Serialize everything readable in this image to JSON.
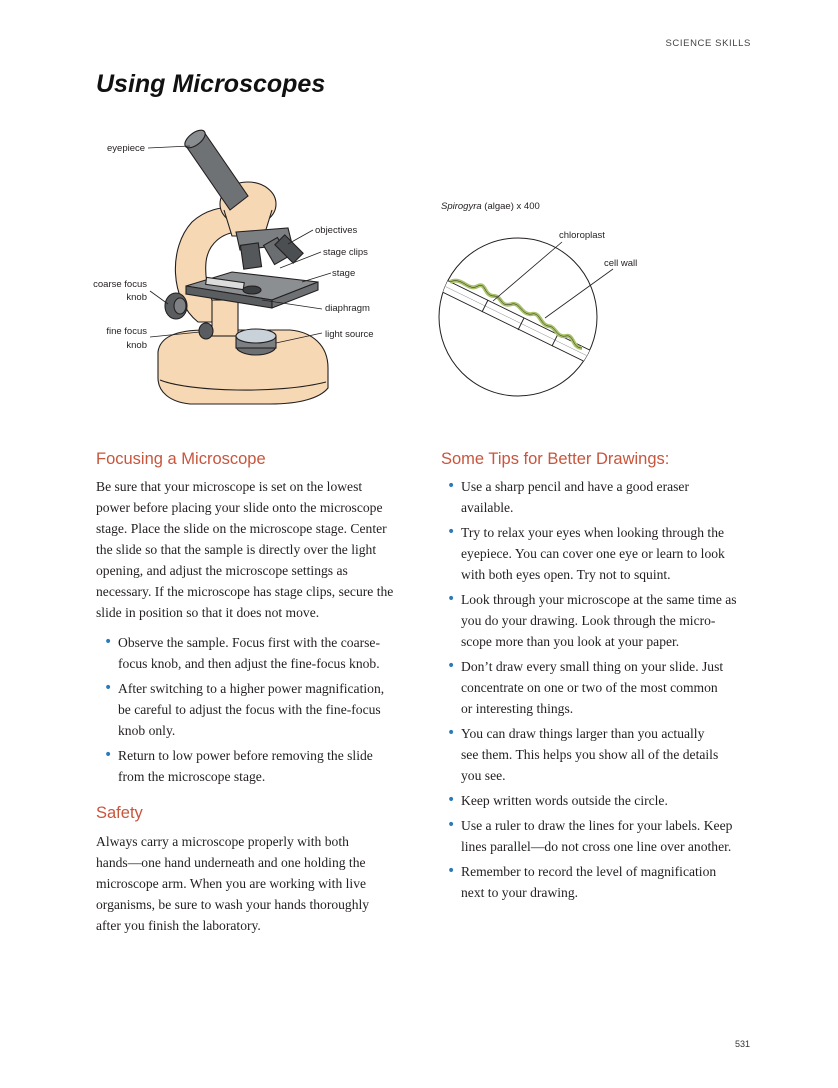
{
  "header": {
    "section_tag": "SCIENCE SKILLS"
  },
  "page_title": "Using Microscopes",
  "microscope_figure": {
    "labels": {
      "eyepiece": "eyepiece",
      "objectives": "objectives",
      "stage_clips": "stage clips",
      "stage": "stage",
      "coarse_focus_1": "coarse focus",
      "coarse_focus_2": "knob",
      "diaphragm": "diaphragm",
      "fine_focus_1": "fine focus",
      "fine_focus_2": "knob",
      "light_source": "light source"
    }
  },
  "spirogyra_figure": {
    "caption_italic": "Spirogyra",
    "caption_rest": " (algae) x 400",
    "labels": {
      "chloroplast": "chloroplast",
      "cell_wall": "cell wall"
    }
  },
  "focusing": {
    "heading": "Focusing a Microscope",
    "lines": [
      "Be sure that your microscope is set on the lowest",
      "power before placing your slide onto the microscope",
      "stage. Place the slide on the microscope stage. Center",
      "the slide so that the sample is directly over the light",
      "opening, and adjust the microscope settings as",
      "necessary. If the microscope has stage clips, secure the",
      "slide in position so that it does not move."
    ],
    "bullets": [
      [
        "Observe the sample. Focus first with the coarse-",
        "focus knob, and then adjust the fine-focus knob."
      ],
      [
        "After switching to a higher power magnification,",
        "be careful to adjust the focus with the fine-focus",
        "knob only."
      ],
      [
        "Return to low power before removing the slide",
        "from the microscope stage."
      ]
    ]
  },
  "safety": {
    "heading": "Safety",
    "lines": [
      "Always carry a microscope properly with both",
      "hands—one hand underneath and one holding the",
      "microscope arm. When you are working with live",
      "organisms, be sure to wash your hands thoroughly",
      "after you finish the laboratory."
    ]
  },
  "tips": {
    "heading": "Some Tips for Better Drawings:",
    "bullets": [
      [
        "Use a sharp pencil and have a good eraser",
        "available."
      ],
      [
        "Try to relax your eyes when looking through the",
        "eyepiece. You can cover one eye or learn to look",
        "with both eyes open. Try not to squint."
      ],
      [
        "Look through your microscope at the same time as",
        "you do your drawing. Look through the micro-",
        "scope more than you look at your paper."
      ],
      [
        "Don’t draw every small thing on your slide. Just",
        "concentrate on one or two of the most common",
        "or interesting things."
      ],
      [
        "You can draw things larger than you actually",
        "see them. This helps you show all of the details",
        "you see."
      ],
      [
        "Keep written words outside the circle."
      ],
      [
        "Use a ruler to draw the lines for your labels. Keep",
        "lines parallel—do not cross one line over another."
      ],
      [
        "Remember to record the level of magnification",
        "next to your drawing."
      ]
    ]
  },
  "page_number": "531",
  "colors": {
    "heading": "#c8553d",
    "bullet": "#2b7bb9",
    "microscope_body": "#f6d9b4",
    "algae": "#b9d48a"
  }
}
